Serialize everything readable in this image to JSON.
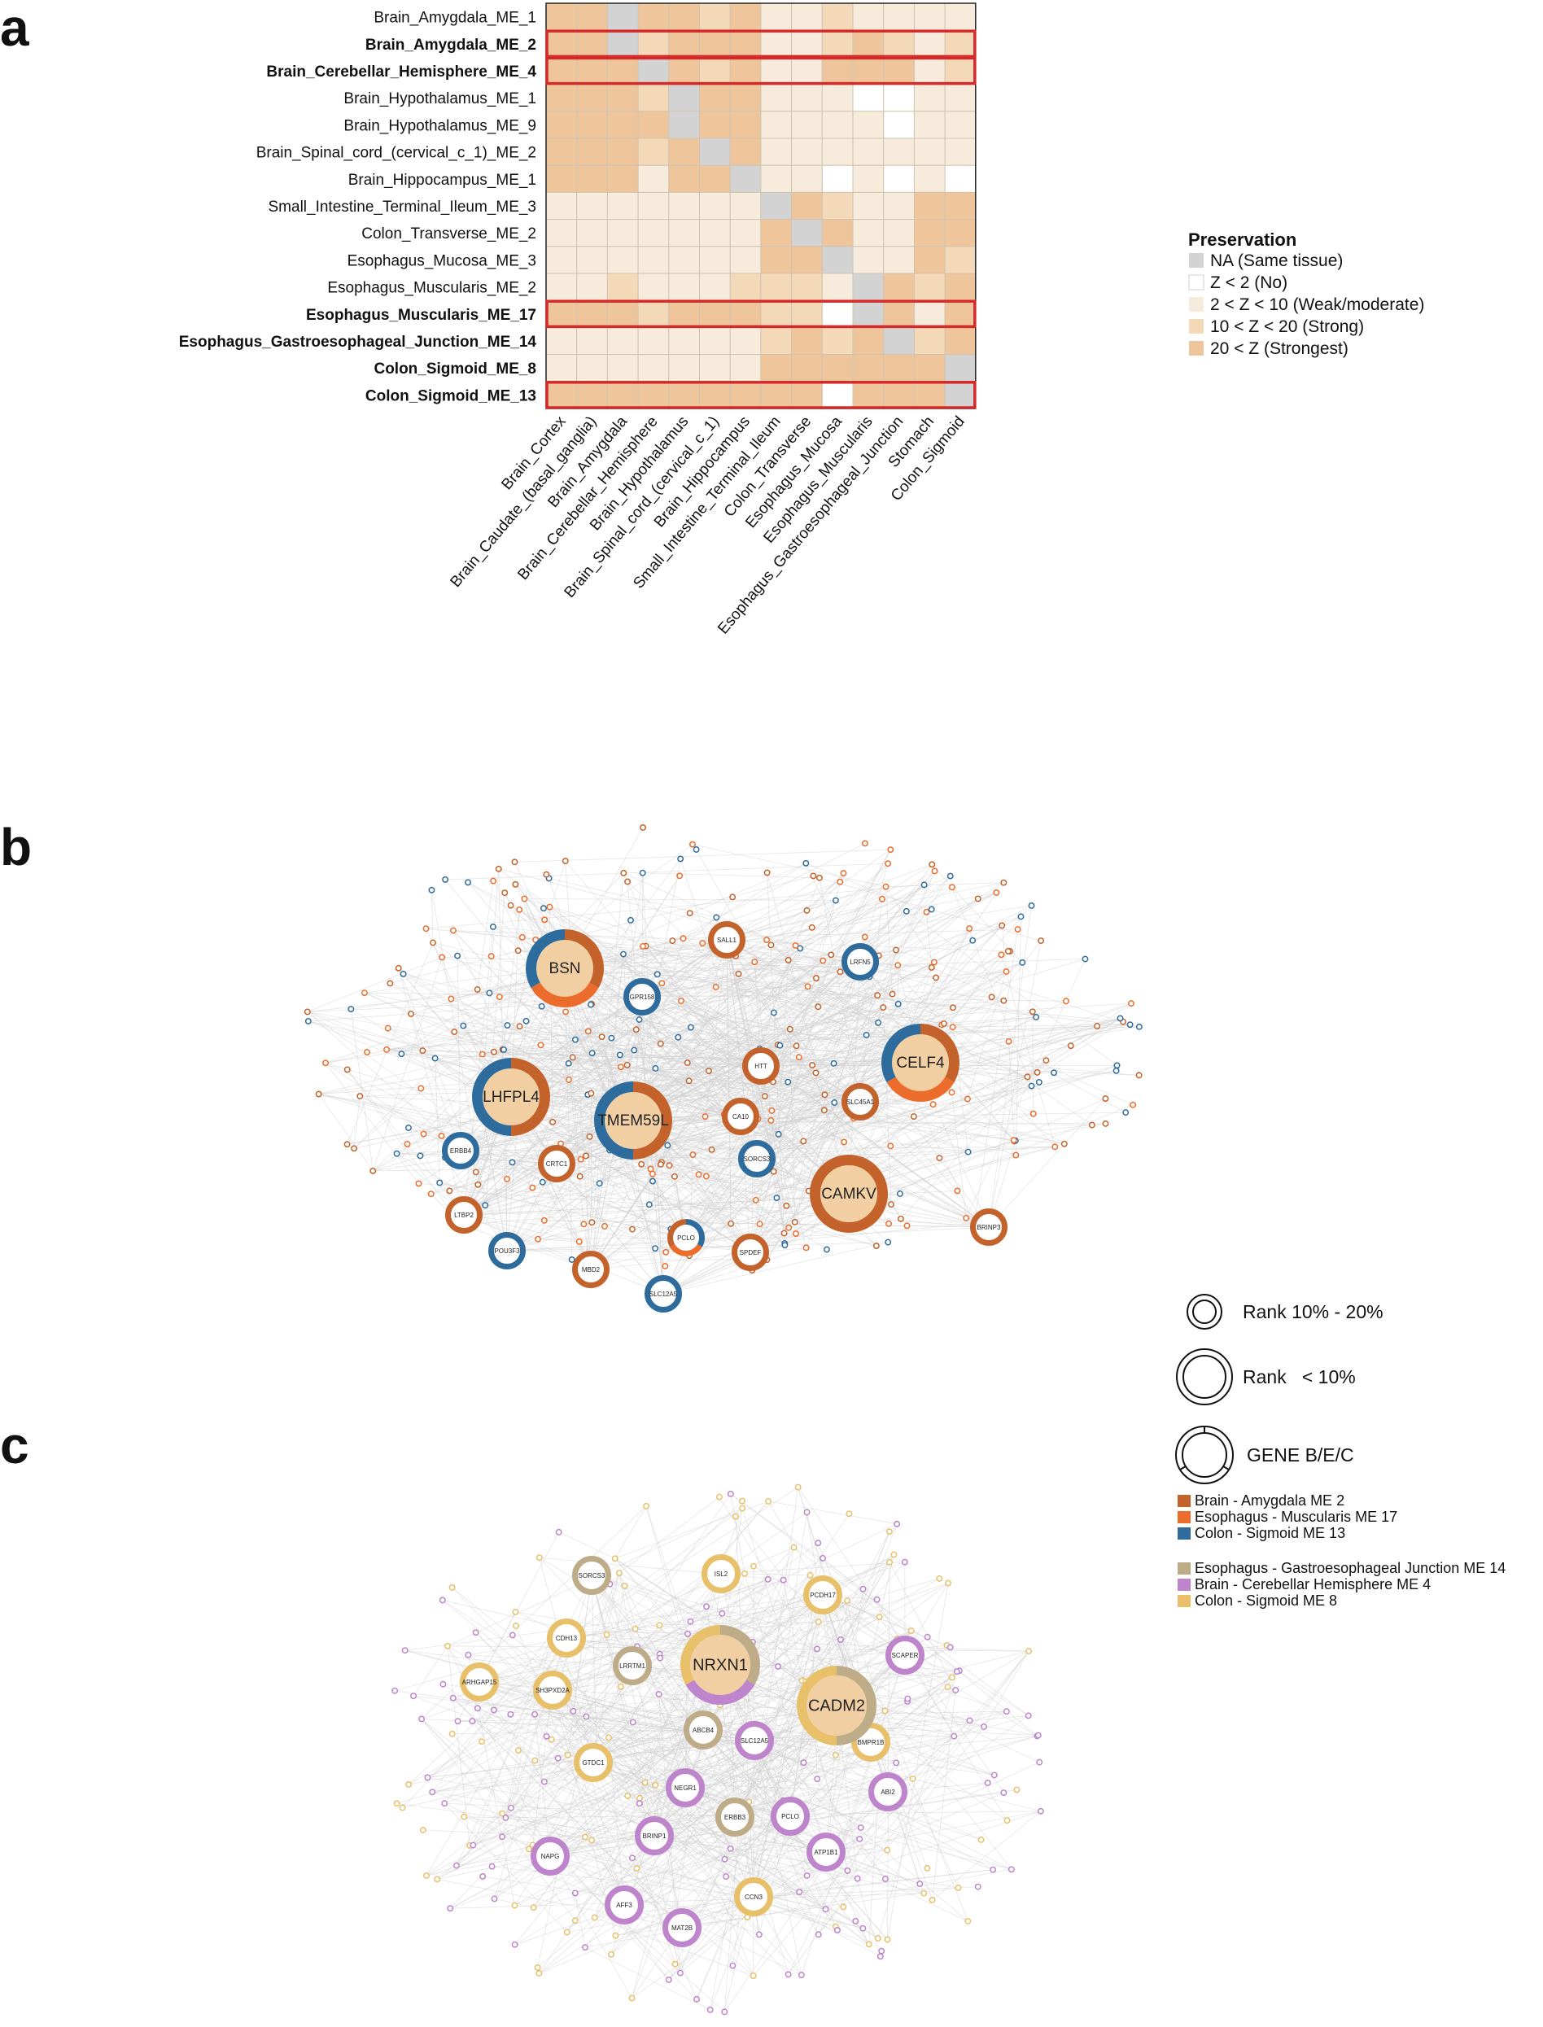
{
  "panels": {
    "a": "a",
    "b": "b",
    "c": "c"
  },
  "heatmap": {
    "rows": [
      {
        "label": "Brain_Amygdala_ME_1",
        "color": "#111111",
        "bold": false
      },
      {
        "label": "Brain_Amygdala_ME_2",
        "color": "#3b74a8",
        "bold": true
      },
      {
        "label": "Brain_Cerebellar_Hemisphere_ME_4",
        "color": "#b77cc6",
        "bold": true
      },
      {
        "label": "Brain_Hypothalamus_ME_1",
        "color": "#111111",
        "bold": false
      },
      {
        "label": "Brain_Hypothalamus_ME_9",
        "color": "#111111",
        "bold": false
      },
      {
        "label": "Brain_Spinal_cord_(cervical_c_1)_ME_2",
        "color": "#111111",
        "bold": false
      },
      {
        "label": "Brain_Hippocampus_ME_1",
        "color": "#111111",
        "bold": false
      },
      {
        "label": "Small_Intestine_Terminal_Ileum_ME_3",
        "color": "#111111",
        "bold": false
      },
      {
        "label": "Colon_Transverse_ME_2",
        "color": "#111111",
        "bold": false
      },
      {
        "label": "Esophagus_Mucosa_ME_3",
        "color": "#111111",
        "bold": false
      },
      {
        "label": "Esophagus_Muscularis_ME_2",
        "color": "#111111",
        "bold": false
      },
      {
        "label": "Esophagus_Muscularis_ME_17",
        "color": "#3b74a8",
        "bold": true
      },
      {
        "label": "Esophagus_Gastroesophageal_Junction_ME_14",
        "color": "#b77cc6",
        "bold": true
      },
      {
        "label": "Colon_Sigmoid_ME_8",
        "color": "#b77cc6",
        "bold": true
      },
      {
        "label": "Colon_Sigmoid_ME_13",
        "color": "#3b74a8",
        "bold": true
      }
    ],
    "columns": [
      "Brain_Cortex",
      "Brain_Caudate_(basal_ganglia)",
      "Brain_Amygdala",
      "Brain_Cerebellar_Hemisphere",
      "Brain_Hypothalamus",
      "Brain_Spinal_cord_(cervical_c_1)",
      "Brain_Hippocampus",
      "Small_Intestine_Terminal_Ileum",
      "Colon_Transverse",
      "Esophagus_Mucosa",
      "Esophagus_Muscularis",
      "Esophagus_Gastroesophageal_Junction",
      "Stomach",
      "Colon_Sigmoid"
    ],
    "preservation_levels": {
      "0": "NA (Same tissue)",
      "1": "Z < 2 (No)",
      "2": "2 < Z < 10 (Weak/moderate)",
      "3": "10 < Z < 20 (Strong)",
      "4": "20 < Z (Strongest)"
    },
    "matrix": [
      [
        4,
        4,
        0,
        4,
        4,
        3,
        4,
        2,
        2,
        3,
        2,
        2,
        2,
        2
      ],
      [
        4,
        4,
        0,
        3,
        4,
        4,
        4,
        2,
        2,
        3,
        4,
        3,
        2,
        3
      ],
      [
        4,
        4,
        4,
        0,
        4,
        3,
        4,
        2,
        2,
        4,
        4,
        4,
        2,
        3
      ],
      [
        4,
        4,
        4,
        3,
        0,
        4,
        4,
        2,
        2,
        2,
        1,
        1,
        2,
        2
      ],
      [
        4,
        4,
        4,
        4,
        0,
        4,
        4,
        2,
        2,
        2,
        2,
        1,
        2,
        2
      ],
      [
        4,
        4,
        4,
        3,
        4,
        0,
        4,
        2,
        2,
        2,
        2,
        2,
        2,
        2
      ],
      [
        4,
        4,
        4,
        2,
        4,
        4,
        0,
        2,
        2,
        1,
        2,
        1,
        2,
        1
      ],
      [
        2,
        2,
        2,
        2,
        2,
        2,
        2,
        0,
        4,
        3,
        2,
        2,
        4,
        4
      ],
      [
        2,
        2,
        2,
        2,
        2,
        2,
        2,
        4,
        0,
        4,
        2,
        2,
        4,
        4
      ],
      [
        2,
        2,
        2,
        2,
        2,
        2,
        2,
        4,
        4,
        0,
        2,
        2,
        4,
        3
      ],
      [
        2,
        2,
        3,
        2,
        2,
        2,
        3,
        3,
        3,
        2,
        0,
        4,
        3,
        4
      ],
      [
        4,
        4,
        4,
        3,
        4,
        4,
        4,
        3,
        3,
        1,
        0,
        4,
        2,
        4
      ],
      [
        2,
        2,
        2,
        2,
        2,
        2,
        2,
        3,
        4,
        3,
        4,
        0,
        3,
        4
      ],
      [
        2,
        2,
        2,
        2,
        2,
        2,
        2,
        4,
        4,
        4,
        4,
        4,
        4,
        0
      ],
      [
        4,
        4,
        4,
        4,
        4,
        4,
        4,
        4,
        4,
        1,
        4,
        4,
        4,
        0
      ]
    ],
    "highlighted_rows": [
      1,
      2,
      11,
      14
    ]
  },
  "legend": {
    "title": "Preservation",
    "items": [
      {
        "label": "NA (Same tissue)",
        "level": 0
      },
      {
        "label": "Z < 2 (No)",
        "level": 1
      },
      {
        "label": "2 < Z < 10 (Weak/moderate)",
        "level": 2
      },
      {
        "label": "10 < Z < 20 (Strong)",
        "level": 3
      },
      {
        "label": "20 < Z (Strongest)",
        "level": 4
      }
    ]
  },
  "colors": {
    "level0": "#d3d3d3",
    "level1": "#ffffff",
    "level2": "#f7ecdc",
    "level3": "#f4d9b8",
    "level4": "#efc59c",
    "highlight": "#d42a2a",
    "grid": "#cfc3b2",
    "amygdala": "#c4622b",
    "muscularis": "#ec6c2b",
    "colon13": "#2f6c9e",
    "gej": "#bdac87",
    "cerebellar": "#be84cc",
    "colon8": "#e8c06a",
    "node_fill": "#f2cfa2",
    "edge": "#d2d2d2"
  },
  "network_b": {
    "hubs": [
      {
        "label": "BSN",
        "rank": "<10%",
        "colors": [
          "amygdala",
          "muscularis",
          "colon13"
        ]
      },
      {
        "label": "LHFPL4",
        "rank": "<10%",
        "colors": [
          "amygdala",
          "colon13"
        ]
      },
      {
        "label": "TMEM59L",
        "rank": "<10%",
        "colors": [
          "amygdala",
          "colon13"
        ]
      },
      {
        "label": "CELF4",
        "rank": "<10%",
        "colors": [
          "amygdala",
          "muscularis",
          "colon13"
        ]
      },
      {
        "label": "CAMKV",
        "rank": "<10%",
        "colors": [
          "amygdala"
        ]
      }
    ],
    "genes": [
      {
        "label": "SALL1",
        "color": "amygdala"
      },
      {
        "label": "LRFN5",
        "color": "colon13"
      },
      {
        "label": "GPR158",
        "color": "colon13"
      },
      {
        "label": "HTT",
        "color": "amygdala"
      },
      {
        "label": "SLC45A1",
        "color": "amygdala"
      },
      {
        "label": "CA10",
        "color": "amygdala"
      },
      {
        "label": "ERBB4",
        "color": "colon13"
      },
      {
        "label": "CRTC1",
        "color": "amygdala"
      },
      {
        "label": "SORCS3",
        "color": "colon13"
      },
      {
        "label": "LTBP2",
        "color": "amygdala"
      },
      {
        "label": "PCLO",
        "color": "mixed"
      },
      {
        "label": "POU3F3",
        "color": "colon13"
      },
      {
        "label": "SPDEF",
        "color": "amygdala"
      },
      {
        "label": "BRINP3",
        "color": "amygdala"
      },
      {
        "label": "MBD2",
        "color": "amygdala"
      },
      {
        "label": "SLC12A5",
        "color": "colon13"
      }
    ]
  },
  "network_c": {
    "hubs": [
      {
        "label": "NRXN1",
        "rank": "<10%",
        "colors": [
          "gej",
          "cerebellar",
          "colon8"
        ]
      },
      {
        "label": "CADM2",
        "rank": "<10%",
        "colors": [
          "gej",
          "colon8"
        ]
      }
    ],
    "genes": [
      {
        "label": "SORCS3",
        "color": "gej"
      },
      {
        "label": "ISL2",
        "color": "colon8"
      },
      {
        "label": "PCDH17",
        "color": "colon8"
      },
      {
        "label": "CDH13",
        "color": "colon8"
      },
      {
        "label": "LRRTM1",
        "color": "gej"
      },
      {
        "label": "SCAPER",
        "color": "cerebellar"
      },
      {
        "label": "ARHGAP15",
        "color": "colon8"
      },
      {
        "label": "SH3PXD2A",
        "color": "colon8"
      },
      {
        "label": "ABCB4",
        "color": "gej"
      },
      {
        "label": "SLC12A5",
        "color": "cerebellar"
      },
      {
        "label": "BMPR1B",
        "color": "colon8"
      },
      {
        "label": "GTDC1",
        "color": "colon8"
      },
      {
        "label": "NEGR1",
        "color": "cerebellar"
      },
      {
        "label": "ABI2",
        "color": "cerebellar"
      },
      {
        "label": "ERBB3",
        "color": "gej"
      },
      {
        "label": "PCLO",
        "color": "cerebellar"
      },
      {
        "label": "NAPG",
        "color": "cerebellar"
      },
      {
        "label": "BRINP1",
        "color": "cerebellar"
      },
      {
        "label": "ATP1B1",
        "color": "cerebellar"
      },
      {
        "label": "AFF3",
        "color": "cerebellar"
      },
      {
        "label": "CCN3",
        "color": "colon8"
      },
      {
        "label": "MAT2B",
        "color": "cerebellar"
      }
    ]
  },
  "rank_legend": {
    "rank_10_20": "Rank 10% - 20%",
    "rank_lt_10": "Rank   < 10%",
    "gene_bec": "GENE B/E/C"
  },
  "module_legend": [
    {
      "label": "Brain - Amygdala ME 2",
      "color": "amygdala"
    },
    {
      "label": "Esophagus - Muscularis ME 17",
      "color": "muscularis"
    },
    {
      "label": "Colon - Sigmoid ME 13",
      "color": "colon13"
    },
    {
      "label": "Esophagus - Gastroesophageal Junction ME 14",
      "color": "gej"
    },
    {
      "label": "Brain - Cerebellar Hemisphere ME 4",
      "color": "cerebellar"
    },
    {
      "label": "Colon - Sigmoid ME 8",
      "color": "colon8"
    }
  ]
}
